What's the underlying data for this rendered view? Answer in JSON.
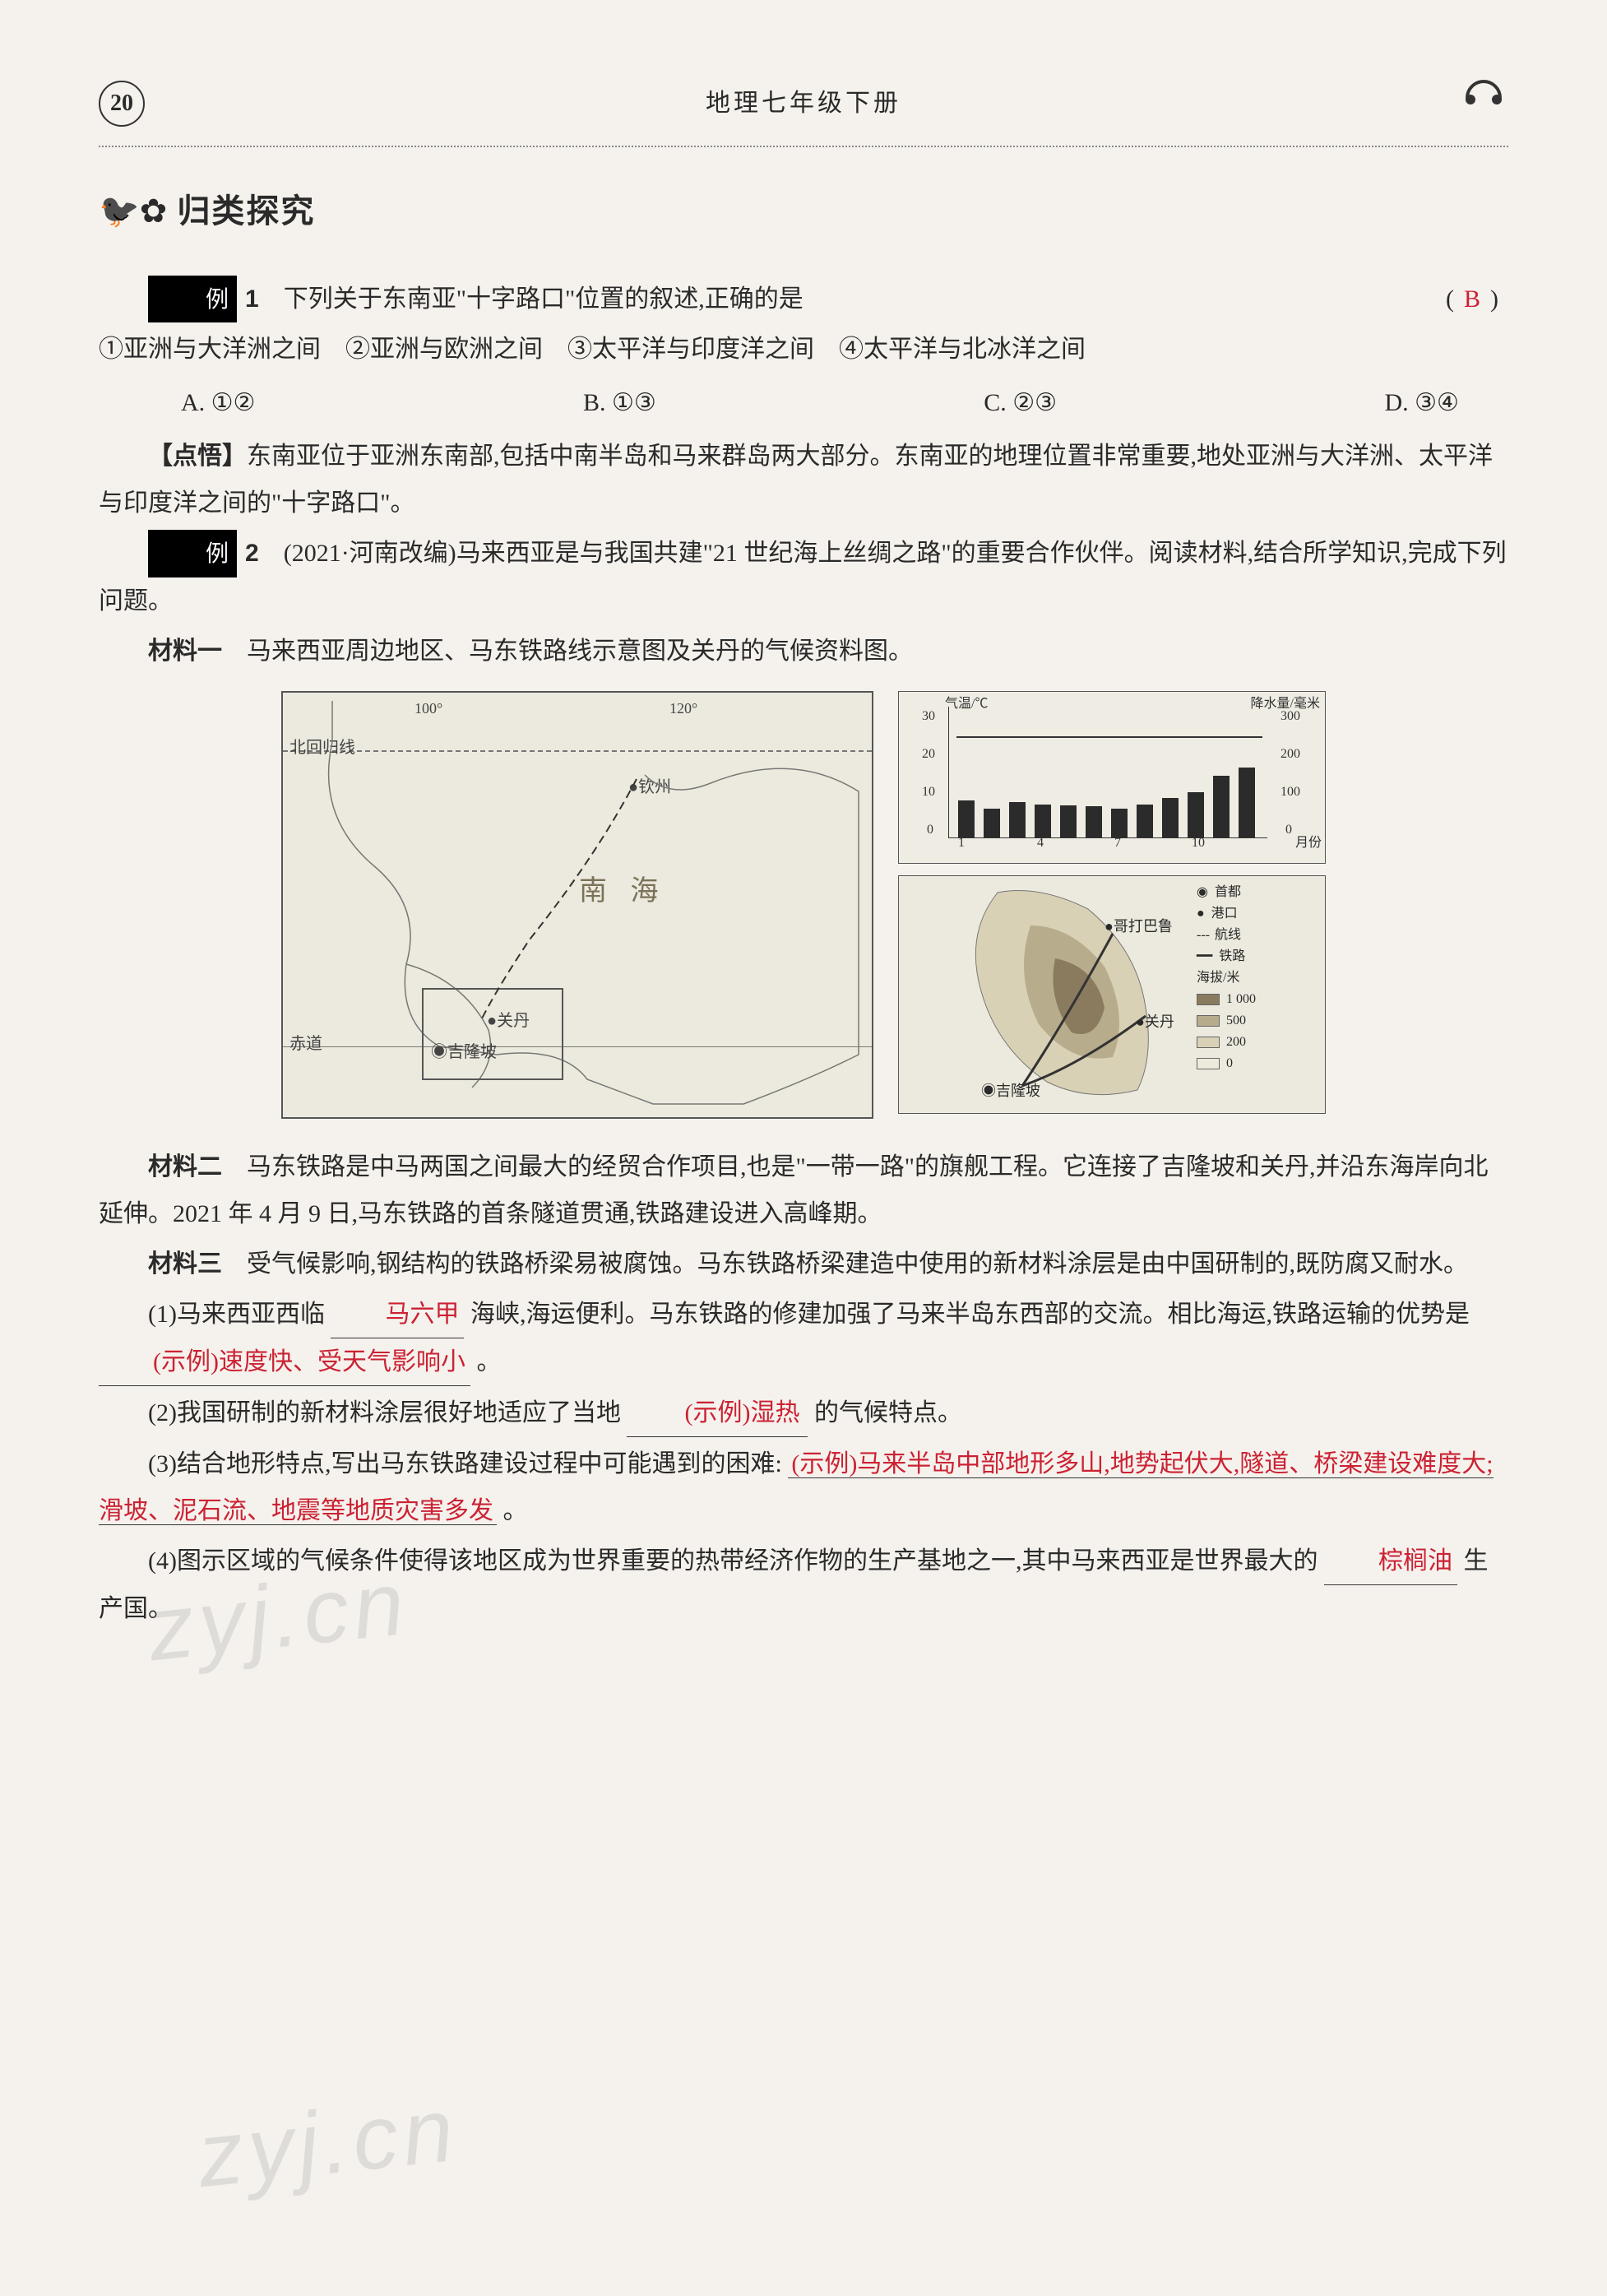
{
  "header": {
    "page_number": "20",
    "title": "地理七年级下册"
  },
  "section": {
    "title": "归类探究"
  },
  "ex1": {
    "label": "例",
    "num": "1",
    "stem": "下列关于东南亚\"十字路口\"位置的叙述,正确的是",
    "paren_open": "(",
    "answer": "B",
    "paren_close": ")",
    "choices_line": "①亚洲与大洋洲之间　②亚洲与欧洲之间　③太平洋与印度洋之间　④太平洋与北冰洋之间",
    "optA": "A. ①②",
    "optB": "B. ①③",
    "optC": "C. ②③",
    "optD": "D. ③④",
    "dianwu_label": "【点悟】",
    "dianwu_text": "东南亚位于亚洲东南部,包括中南半岛和马来群岛两大部分。东南亚的地理位置非常重要,地处亚洲与大洋洲、太平洋与印度洋之间的\"十字路口\"。"
  },
  "ex2": {
    "label": "例",
    "num": "2",
    "source": "(2021·河南改编)",
    "stem": "马来西亚是与我国共建\"21 世纪海上丝绸之路\"的重要合作伙伴。阅读材料,结合所学知识,完成下列问题。",
    "mat1_label": "材料一",
    "mat1_text": "马来西亚周边地区、马东铁路线示意图及关丹的气候资料图。",
    "mat2_label": "材料二",
    "mat2_text": "马东铁路是中马两国之间最大的经贸合作项目,也是\"一带一路\"的旗舰工程。它连接了吉隆坡和关丹,并沿东海岸向北延伸。2021 年 4 月 9 日,马东铁路的首条隧道贯通,铁路建设进入高峰期。",
    "mat3_label": "材料三",
    "mat3_text": "受气候影响,钢结构的铁路桥梁易被腐蚀。马东铁路桥梁建造中使用的新材料涂层是由中国研制的,既防腐又耐水。",
    "q1_a": "(1)马来西亚西临",
    "q1_blank1": "马六甲",
    "q1_b": "海峡,海运便利。马东铁路的修建加强了马来半岛东西部的交流。相比海运,铁路运输的优势是",
    "q1_blank2": "(示例)速度快、受天气影响小",
    "q1_c": "。",
    "q2_a": "(2)我国研制的新材料涂层很好地适应了当地",
    "q2_blank": "(示例)湿热",
    "q2_b": "的气候特点。",
    "q3_a": "(3)结合地形特点,写出马东铁路建设过程中可能遇到的困难:",
    "q3_blank": "(示例)马来半岛中部地形多山,地势起伏大,隧道、桥梁建设难度大;滑坡、泥石流、地震等地质灾害多发",
    "q3_b": "。",
    "q4_a": "(4)图示区域的气候条件使得该地区成为世界重要的热带经济作物的生产基地之一,其中马来西亚是世界最大的",
    "q4_blank": "棕榈油",
    "q4_b": "生产国。"
  },
  "map": {
    "lon100": "100°",
    "lon120": "120°",
    "tropic_label": "北回归线",
    "equator_label": "赤道",
    "sea_label": "南 海",
    "place_qinzhou": "钦州",
    "place_guandan": "关丹",
    "place_kl": "吉隆坡",
    "place_kl2": "吉隆坡",
    "place_gdbl": "哥打巴鲁",
    "place_gd2": "关丹"
  },
  "climate": {
    "y_temp_label": "气温/℃",
    "y_prec_label": "降水量/毫米",
    "x_label": "月份",
    "y_temp_ticks": [
      "0",
      "10",
      "20",
      "30"
    ],
    "y_prec_ticks": [
      "0",
      "100",
      "200",
      "300"
    ],
    "x_ticks": [
      "1",
      "4",
      "7",
      "10"
    ],
    "bars": [
      90,
      70,
      85,
      80,
      78,
      75,
      70,
      80,
      95,
      110,
      150,
      170
    ],
    "bar_max": 300,
    "temp_line_c": 27,
    "temp_max": 30,
    "bar_color": "#2b2b2b",
    "axis_color": "#2b2b2b",
    "bg": "#efede3"
  },
  "legend": {
    "capital": "首都",
    "port": "港口",
    "route": "航线",
    "rail": "铁路",
    "elev_label": "海拔/米",
    "elev_1000": "1 000",
    "elev_500": "500",
    "elev_200": "200",
    "elev_0": "0",
    "c1000": "#8a7a5e",
    "c500": "#b7ac8c",
    "c200": "#d8d1b6",
    "c0": "#eeeadb"
  },
  "watermarks": {
    "w1": "zyj.cn",
    "w2": "zyj.cn"
  }
}
